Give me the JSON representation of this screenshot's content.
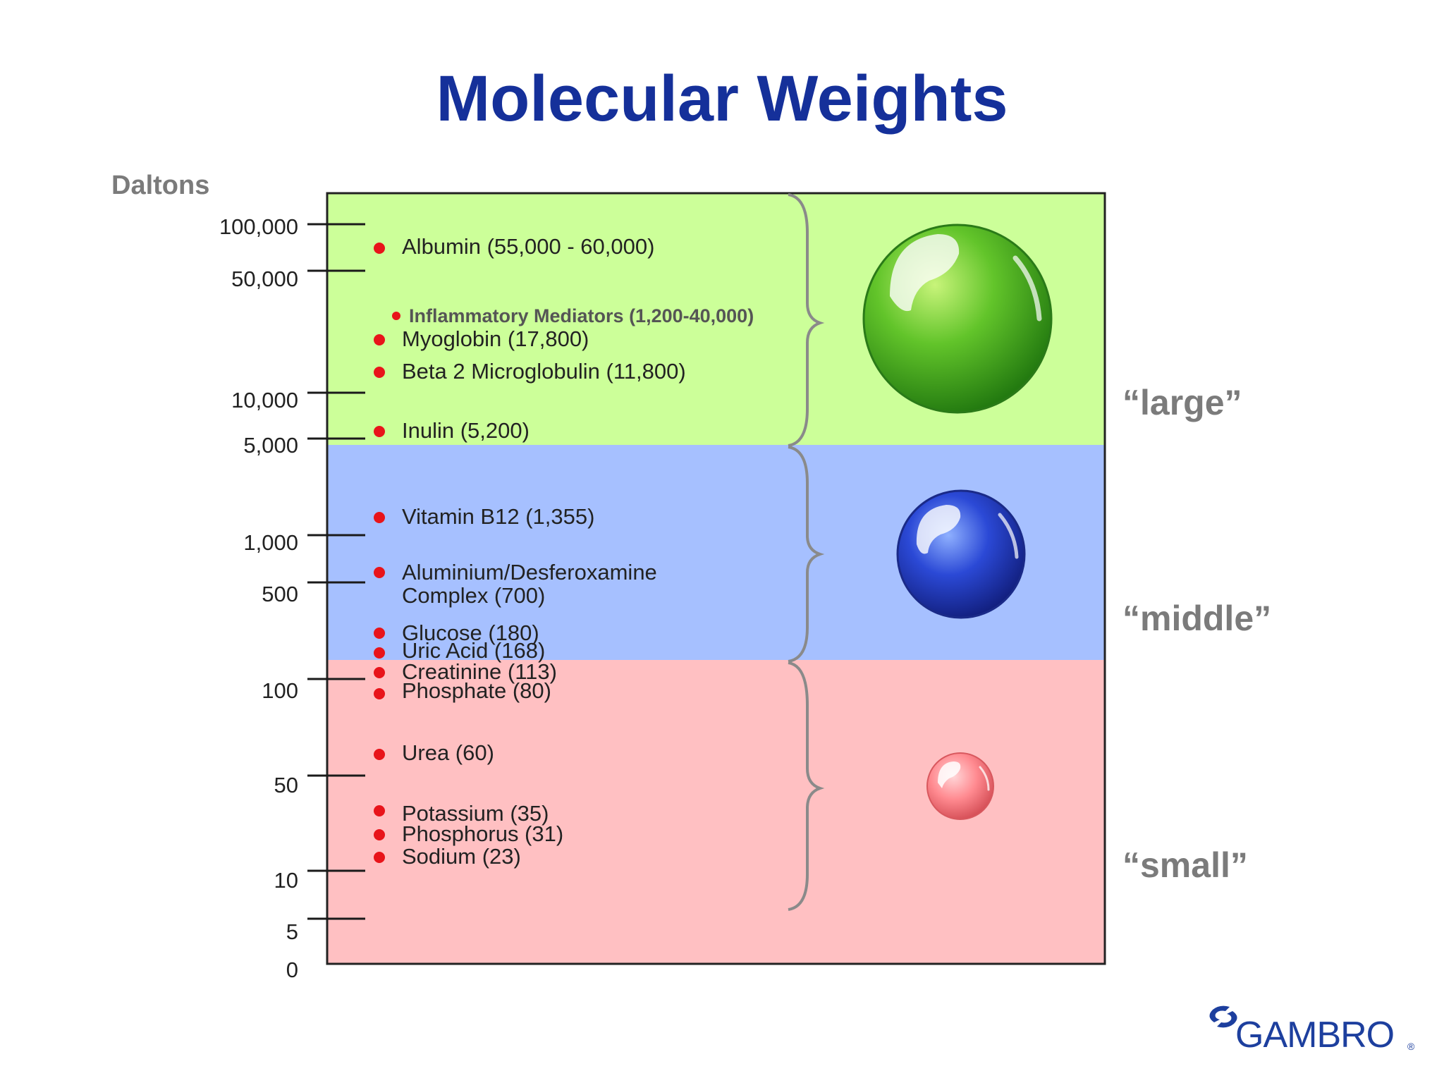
{
  "title": "Molecular Weights",
  "unit_label": "Daltons",
  "axis_ticks": [
    "100,000",
    "50,000",
    "10,000",
    "5,000",
    "1,000",
    "500",
    "100",
    "50",
    "10",
    "5",
    "0"
  ],
  "size_labels": {
    "large": "“large”",
    "middle": "“middle”",
    "small": "“small”"
  },
  "zone_colors": {
    "large": "#ccff99",
    "middle": "#a6c0ff",
    "small": "#ffc0c2"
  },
  "molecules": [
    {
      "label": "Albumin (55,000 - 60,000)"
    },
    {
      "label": "Inflammatory Mediators (1,200-40,000)"
    },
    {
      "label": "Myoglobin (17,800)"
    },
    {
      "label": "Beta 2 Microglobulin (11,800)"
    },
    {
      "label": "Inulin (5,200)"
    },
    {
      "label": "Vitamin B12 (1,355)"
    },
    {
      "label": "Aluminium/Desferoxamine",
      "label2": "Complex (700)"
    },
    {
      "label": "Glucose (180)"
    },
    {
      "label": "Uric Acid (168)"
    },
    {
      "label": "Creatinine (113)"
    },
    {
      "label": "Phosphate (80)"
    },
    {
      "label": "Urea (60)"
    },
    {
      "label": "Potassium (35)"
    },
    {
      "label": "Phosphorus (31)"
    },
    {
      "label": "Sodium (23)"
    }
  ],
  "logo": {
    "text": "GAMBRO",
    "registered": "®"
  }
}
